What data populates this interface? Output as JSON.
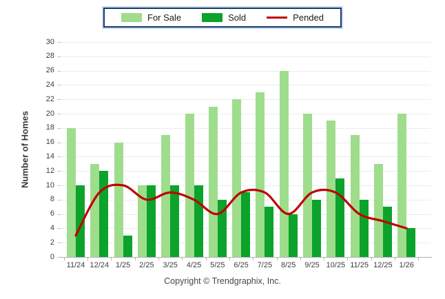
{
  "legend": {
    "items": [
      {
        "label": "For Sale",
        "swatch": "bar",
        "color": "#9edd8c"
      },
      {
        "label": "Sold",
        "swatch": "bar",
        "color": "#0ba32b"
      },
      {
        "label": "Pended",
        "swatch": "line",
        "color": "#bf0000"
      }
    ]
  },
  "chart_data": {
    "type": "bar+line",
    "categories": [
      "11/24",
      "12/24",
      "1/25",
      "2/25",
      "3/25",
      "4/25",
      "5/25",
      "6/25",
      "7/25",
      "8/25",
      "9/25",
      "10/25",
      "11/25",
      "12/25",
      "1/26"
    ],
    "series": [
      {
        "name": "For Sale",
        "type": "bar",
        "color": "#9edd8c",
        "values": [
          18,
          13,
          16,
          10,
          17,
          20,
          21,
          22,
          23,
          26,
          20,
          19,
          17,
          13,
          20
        ]
      },
      {
        "name": "Sold",
        "type": "bar",
        "color": "#0ba32b",
        "values": [
          10,
          12,
          3,
          10,
          10,
          10,
          8,
          9,
          7,
          6,
          8,
          11,
          8,
          7,
          4
        ]
      },
      {
        "name": "Pended",
        "type": "line",
        "color": "#bf0000",
        "values": [
          3,
          9,
          10,
          8,
          9,
          8,
          6,
          9,
          9,
          6,
          9,
          9,
          6,
          5,
          4
        ]
      }
    ],
    "title": "",
    "xlabel": "",
    "ylabel": "Number of Homes",
    "ylim": [
      0,
      30
    ],
    "ytick_step": 2,
    "grid": true,
    "legend_position": "top-center",
    "line_style": "smooth-spline"
  },
  "footer": {
    "copyright": "Copyright © Trendgraphix, Inc."
  }
}
